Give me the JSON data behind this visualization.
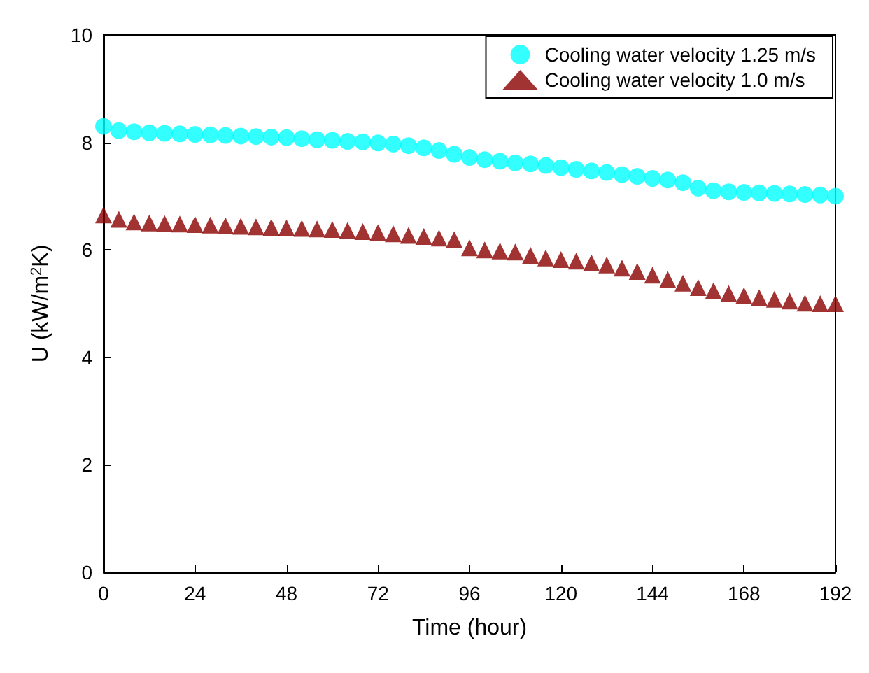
{
  "chart_data": {
    "type": "scatter",
    "xlabel": "Time (hour)",
    "ylabel": "U (kW/m$^{2}$K)",
    "x": [
      0,
      4,
      8,
      12,
      16,
      20,
      24,
      28,
      32,
      36,
      40,
      44,
      48,
      52,
      56,
      60,
      64,
      68,
      72,
      76,
      80,
      84,
      88,
      92,
      96,
      100,
      104,
      108,
      112,
      116,
      120,
      124,
      128,
      132,
      136,
      140,
      144,
      148,
      152,
      156,
      160,
      164,
      168,
      172,
      176,
      180,
      184,
      188,
      192
    ],
    "series": [
      {
        "name": "Cooling water velocity 1.25 m/s",
        "color": "#00ffff",
        "marker": "circle",
        "values": [
          8.3,
          8.22,
          8.2,
          8.18,
          8.17,
          8.16,
          8.15,
          8.14,
          8.13,
          8.12,
          8.11,
          8.1,
          8.09,
          8.07,
          8.05,
          8.04,
          8.02,
          8.01,
          7.99,
          7.97,
          7.94,
          7.9,
          7.85,
          7.78,
          7.72,
          7.68,
          7.65,
          7.62,
          7.6,
          7.57,
          7.53,
          7.5,
          7.47,
          7.44,
          7.4,
          7.37,
          7.33,
          7.3,
          7.25,
          7.15,
          7.1,
          7.08,
          7.07,
          7.06,
          7.05,
          7.04,
          7.03,
          7.02,
          7.0
        ]
      },
      {
        "name": "Cooling water velocity 1.0 m/s",
        "color": "#8b0000",
        "marker": "triangle",
        "values": [
          6.65,
          6.57,
          6.52,
          6.5,
          6.49,
          6.48,
          6.47,
          6.46,
          6.45,
          6.44,
          6.43,
          6.42,
          6.41,
          6.4,
          6.39,
          6.38,
          6.36,
          6.34,
          6.32,
          6.3,
          6.27,
          6.25,
          6.22,
          6.19,
          6.04,
          6.0,
          5.98,
          5.96,
          5.9,
          5.85,
          5.82,
          5.79,
          5.76,
          5.72,
          5.66,
          5.6,
          5.53,
          5.45,
          5.38,
          5.3,
          5.24,
          5.19,
          5.15,
          5.11,
          5.08,
          5.05,
          5.01,
          5.0,
          5.0
        ]
      }
    ],
    "xlim": [
      0,
      192
    ],
    "xticks": [
      0,
      24,
      48,
      72,
      96,
      120,
      144,
      168,
      192
    ],
    "ylim": [
      0,
      10
    ],
    "yticks": [
      0,
      2,
      4,
      6,
      8,
      10
    ],
    "grid": false,
    "legend": "top right"
  }
}
